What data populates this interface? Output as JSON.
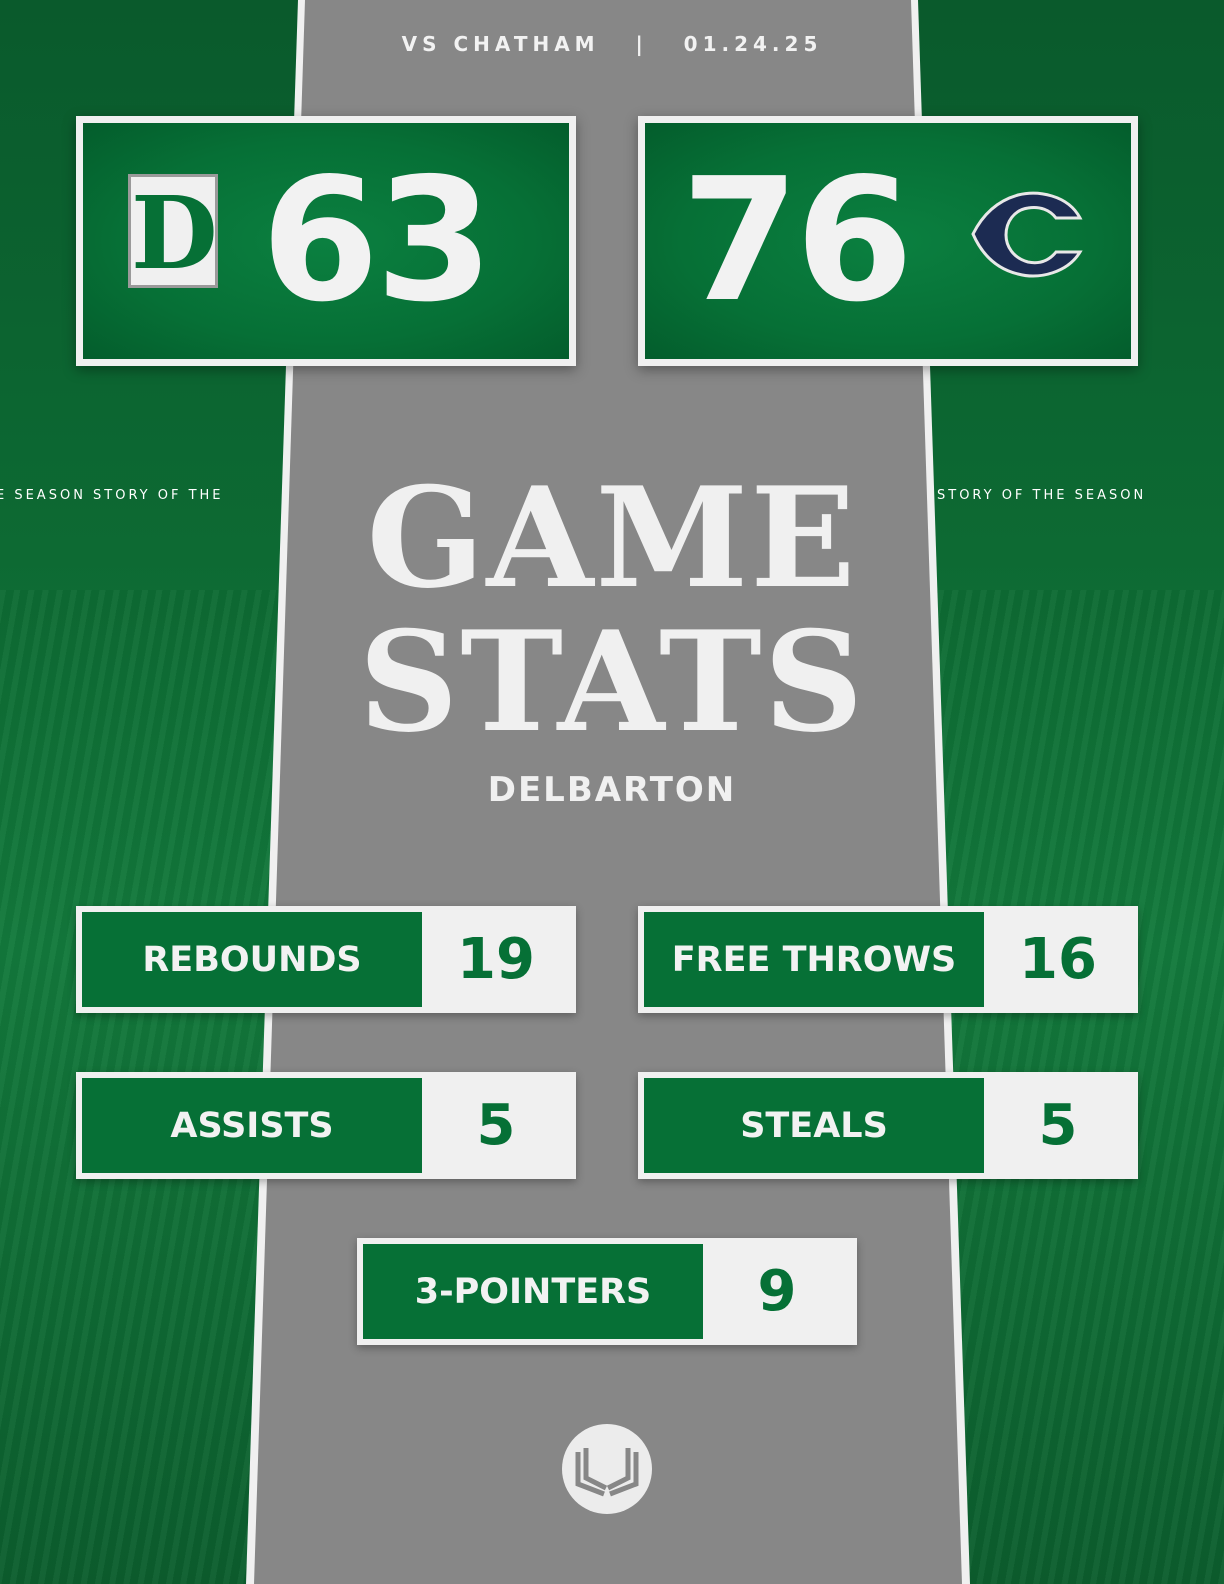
{
  "header": {
    "opponent": "VS CHATHAM",
    "separator": "|",
    "date": "01.24.25"
  },
  "side_text": {
    "left": "E SEASON   STORY OF THE",
    "right": "STORY OF THE SEASON"
  },
  "scores": {
    "home": {
      "score": "63",
      "logo": "D",
      "logo_icon": "delbarton-d-logo"
    },
    "away": {
      "score": "76",
      "logo_icon": "chatham-c-logo"
    }
  },
  "title": {
    "line1": "GAME",
    "line2": "STATS"
  },
  "team": "DELBARTON",
  "stats": [
    {
      "label": "REBOUNDS",
      "value": "19"
    },
    {
      "label": "FREE THROWS",
      "value": "16"
    },
    {
      "label": "ASSISTS",
      "value": "5"
    },
    {
      "label": "STEALS",
      "value": "5"
    },
    {
      "label": "3-POINTERS",
      "value": "9"
    }
  ],
  "colors": {
    "green": "#067036",
    "gray": "#878787",
    "navy": "#1c2b52",
    "white": "#f0f0f0"
  },
  "footer_icon": "open-book-logo"
}
